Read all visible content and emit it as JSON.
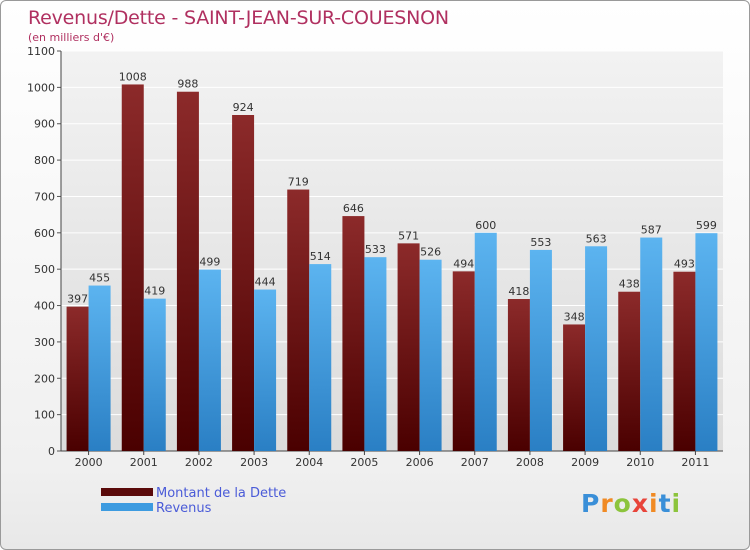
{
  "title": "Revenus/Dette - SAINT-JEAN-SUR-COUESNON",
  "subtitle": "(en milliers d'€)",
  "brand": {
    "letters": [
      "P",
      "r",
      "o",
      "x",
      "i",
      "t",
      "i"
    ],
    "colors": [
      "#3a8fd8",
      "#f08a24",
      "#8cc43c",
      "#e8443a",
      "#f08a24",
      "#3a8fd8",
      "#8cc43c"
    ]
  },
  "colors": {
    "debt": "#6b0f0f",
    "revenue": "#3d9be0"
  },
  "chart_data": {
    "type": "bar",
    "categories": [
      "2000",
      "2001",
      "2002",
      "2003",
      "2004",
      "2005",
      "2006",
      "2007",
      "2008",
      "2009",
      "2010",
      "2011"
    ],
    "series": [
      {
        "name": "Montant de la Dette",
        "values": [
          397,
          1008,
          988,
          924,
          719,
          646,
          571,
          494,
          418,
          348,
          438,
          493
        ]
      },
      {
        "name": "Revenus",
        "values": [
          455,
          419,
          499,
          444,
          514,
          533,
          526,
          600,
          553,
          563,
          587,
          599
        ]
      }
    ],
    "ylim": [
      0,
      1100
    ],
    "yticks": [
      0,
      100,
      200,
      300,
      400,
      500,
      600,
      700,
      800,
      900,
      1000,
      1100
    ],
    "grid": true,
    "legend": "bottom-left"
  }
}
